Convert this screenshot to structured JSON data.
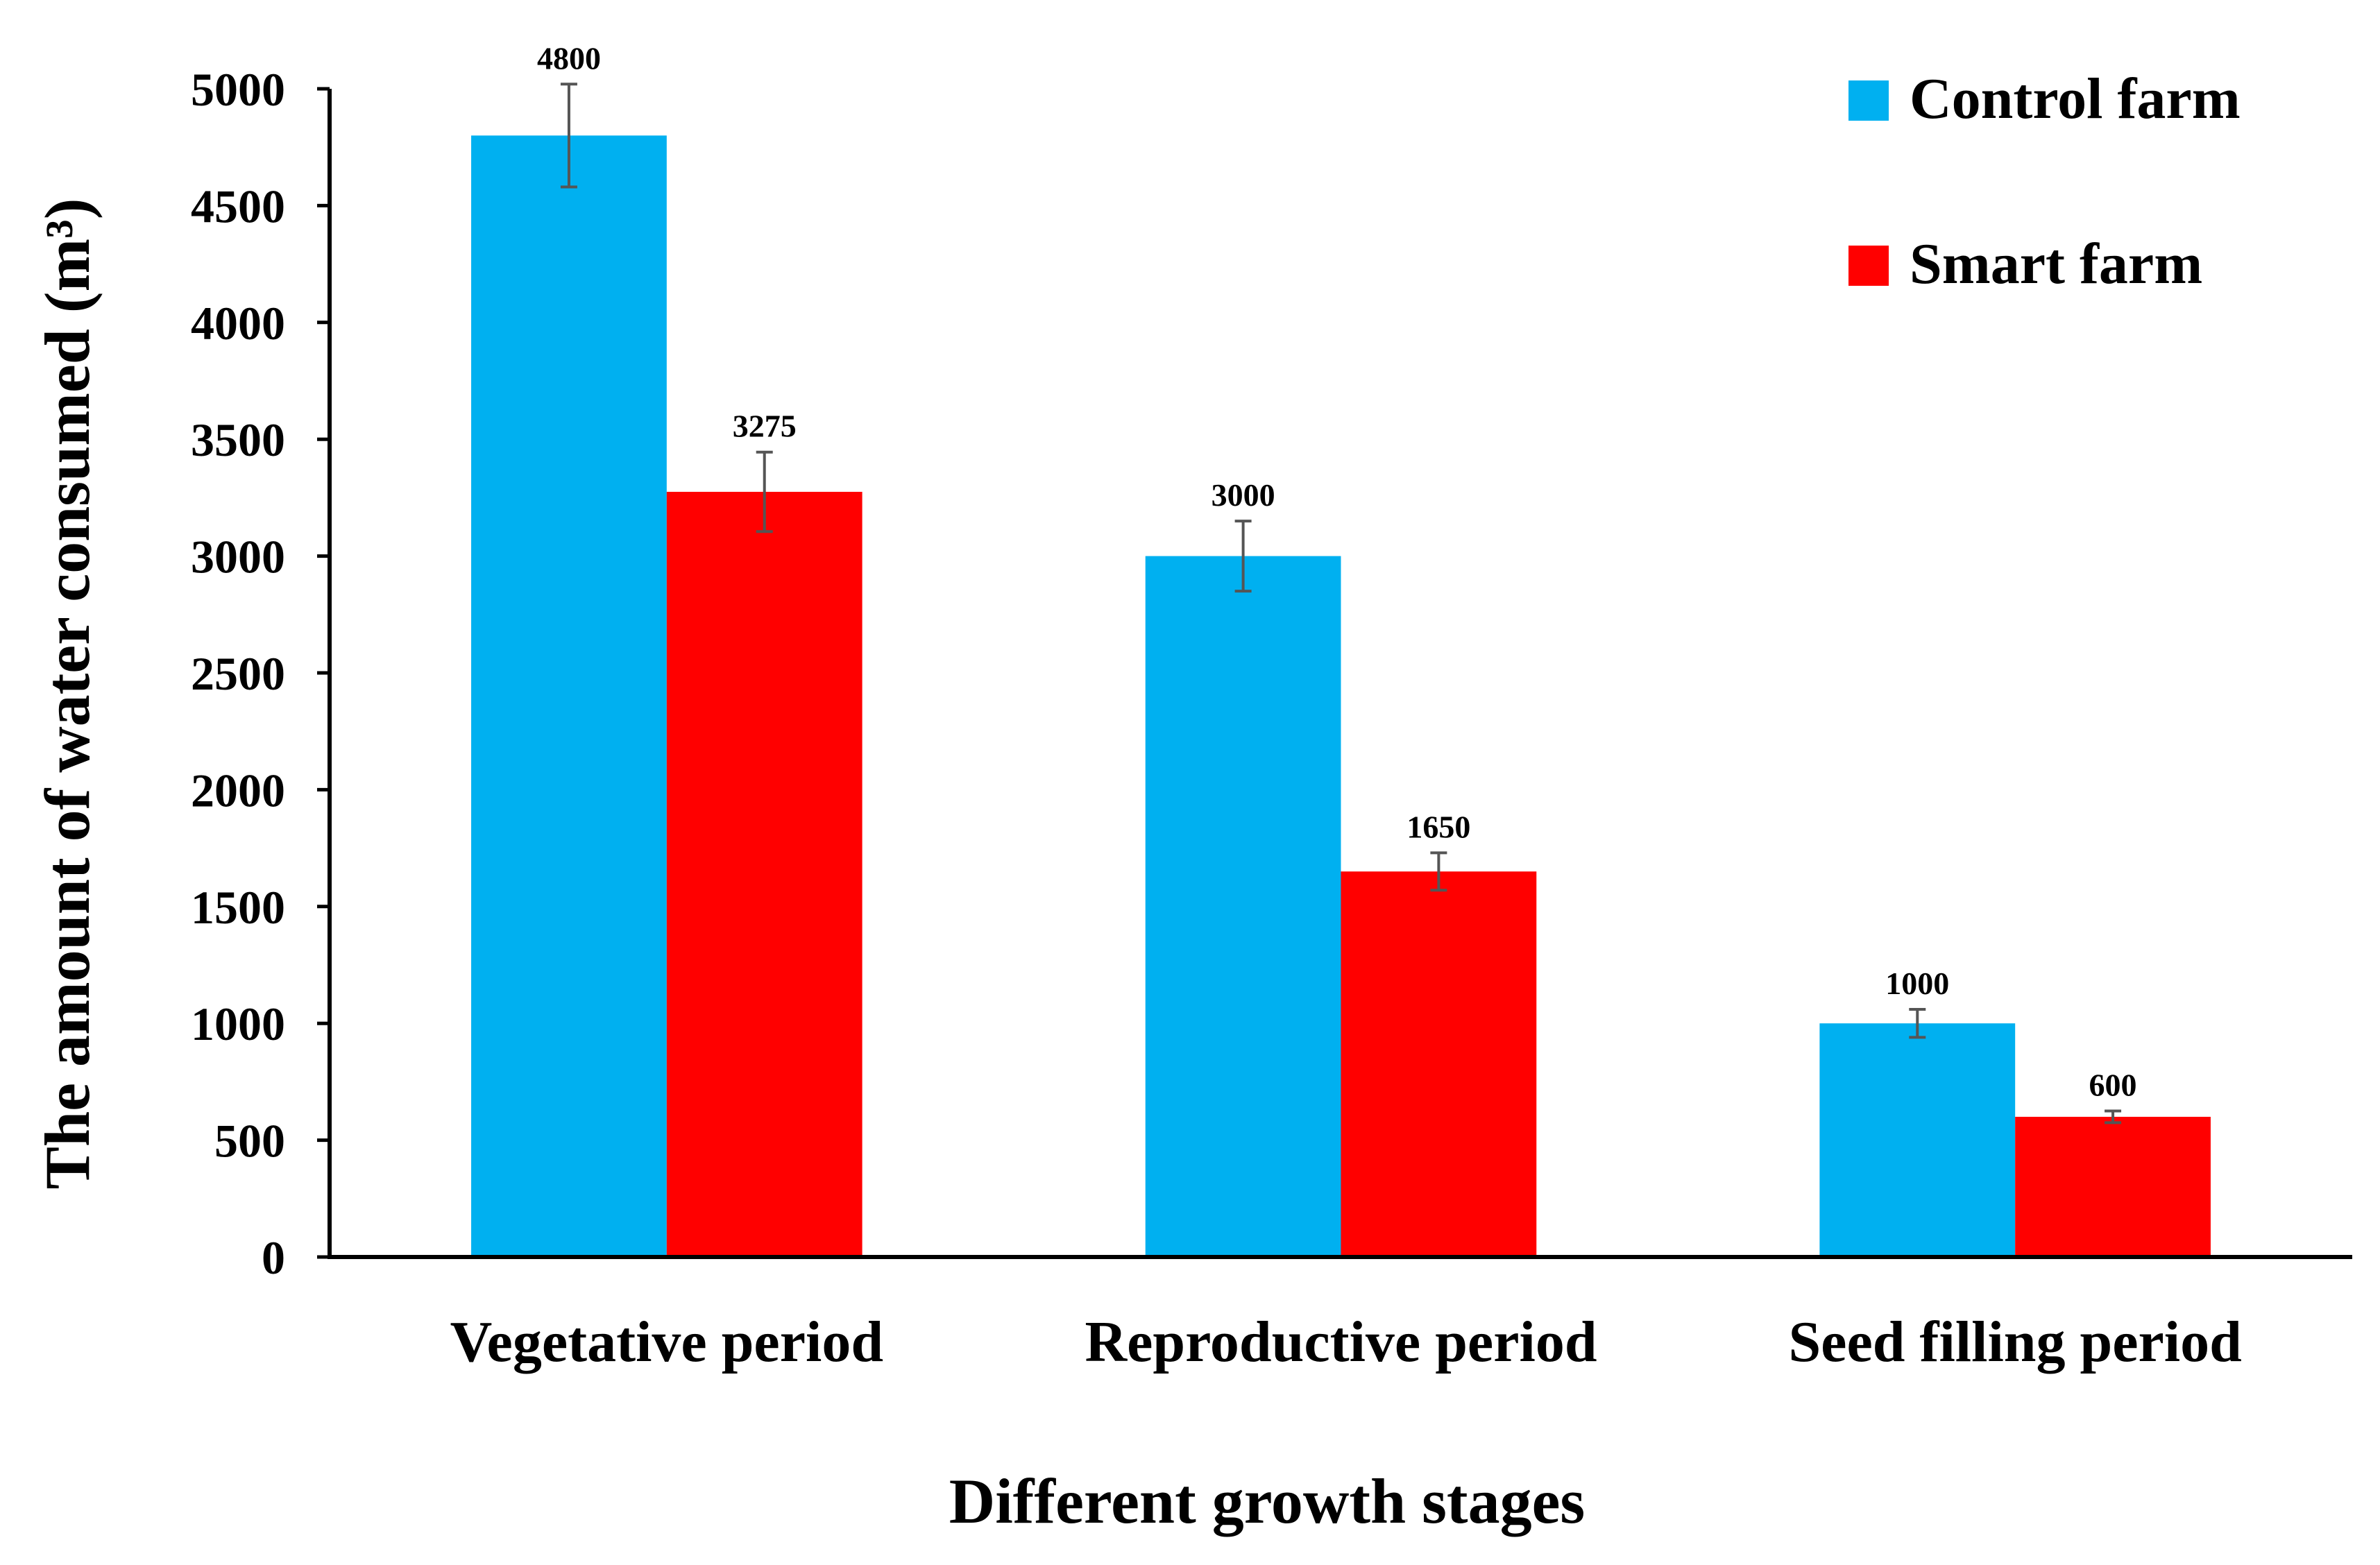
{
  "chart_data": {
    "type": "bar",
    "xlabel": "Different growth stages",
    "ylabel": "The amount of water consumed (m³)",
    "ylim": [
      0,
      5000
    ],
    "yticks": [
      0,
      500,
      1000,
      1500,
      2000,
      2500,
      3000,
      3500,
      4000,
      4500,
      5000
    ],
    "categories": [
      "Vegetative period",
      "Reproductive period",
      "Seed filling period"
    ],
    "series": [
      {
        "name": "Control farm",
        "color": "#00B0F0",
        "values": [
          4800,
          3000,
          1000
        ],
        "error": [
          220,
          150,
          60
        ]
      },
      {
        "name": "Smart farm",
        "color": "#FF0000",
        "values": [
          3275,
          1650,
          600
        ],
        "error": [
          170,
          80,
          25
        ]
      }
    ],
    "data_labels": [
      [
        "4800",
        "3000",
        "1000"
      ],
      [
        "3275",
        "1650",
        "600"
      ]
    ],
    "legend": {
      "position": "top-right"
    },
    "grid": false
  }
}
